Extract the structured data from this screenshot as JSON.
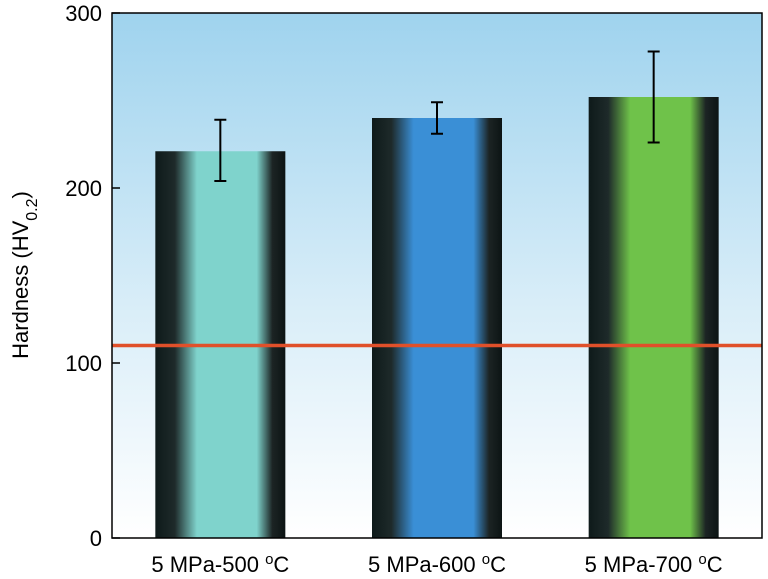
{
  "chart_data": {
    "type": "bar",
    "categories": [
      "5 MPa-500 °C",
      "5 MPa-600 °C",
      "5 MPa-700 °C"
    ],
    "category_labels": [
      {
        "main": "5 MPa-500 ",
        "sup": "o",
        "unit": "C"
      },
      {
        "main": "5 MPa-600 ",
        "sup": "o",
        "unit": "C"
      },
      {
        "main": "5 MPa-700 ",
        "sup": "o",
        "unit": "C"
      }
    ],
    "values": [
      221,
      240,
      252
    ],
    "errors": [
      {
        "low": 204,
        "high": 239
      },
      {
        "low": 231,
        "high": 249
      },
      {
        "low": 226,
        "high": 278
      }
    ],
    "ylim": [
      0,
      300
    ],
    "yticks": [
      0,
      100,
      200,
      300
    ],
    "ylabel": {
      "main": "Hardness (HV",
      "sub": "0.2",
      "close": ")"
    },
    "xlabel": "",
    "reference_line": {
      "value": 110,
      "color": "#e0502a"
    },
    "bar_colors": [
      "#7fd3cc",
      "#3a8fd6",
      "#6fc24a"
    ],
    "background": {
      "top": "#9fd3ee",
      "bottom": "#ffffff"
    },
    "grid": false
  }
}
